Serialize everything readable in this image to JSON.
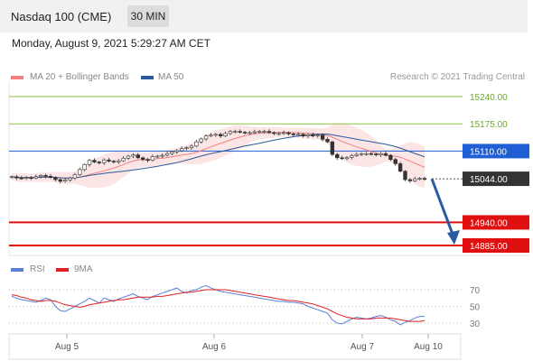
{
  "header": {
    "title": "Nasdaq 100 (CME)",
    "timeframe": "30 MIN",
    "timestamp": "Monday, August 9, 2021 5:29:27 AM CET"
  },
  "legend": {
    "items": [
      {
        "label": "MA 20 + Bollinger Bands",
        "color": "#f08080"
      },
      {
        "label": "MA 50",
        "color": "#2a5a9a"
      }
    ],
    "credit": "Research © 2021 Trading Central"
  },
  "rsi_legend": {
    "items": [
      {
        "label": "RSI",
        "color": "#5b7fd6"
      },
      {
        "label": "9MA",
        "color": "#e02020"
      }
    ]
  },
  "chart_data": [
    {
      "type": "candlestick",
      "title": "Nasdaq 100 (CME)",
      "price_levels": [
        {
          "value": 15240.0,
          "label": "15240.00",
          "kind": "target",
          "color": "#8cc63f"
        },
        {
          "value": 15175.0,
          "label": "15175.00",
          "kind": "target",
          "color": "#8cc63f"
        },
        {
          "value": 15110.0,
          "label": "15110.00",
          "kind": "pivot",
          "color": "#1e5fd6"
        },
        {
          "value": 15044.0,
          "label": "15044.00",
          "kind": "last",
          "color": "#333333"
        },
        {
          "value": 14940.0,
          "label": "14940.00",
          "kind": "support",
          "color": "#e01010"
        },
        {
          "value": 14885.0,
          "label": "14885.00",
          "kind": "support",
          "color": "#e01010"
        }
      ],
      "close_series": [
        15049,
        15046,
        15045,
        15047,
        15046,
        15049,
        15052,
        15050,
        15047,
        15042,
        15038,
        15041,
        15046,
        15054,
        15066,
        15078,
        15088,
        15084,
        15082,
        15089,
        15086,
        15084,
        15087,
        15093,
        15098,
        15101,
        15094,
        15090,
        15088,
        15097,
        15098,
        15100,
        15104,
        15108,
        15111,
        15116,
        15118,
        15122,
        15132,
        15139,
        15146,
        15148,
        15150,
        15146,
        15152,
        15157,
        15157,
        15155,
        15154,
        15154,
        15156,
        15157,
        15157,
        15154,
        15152,
        15152,
        15154,
        15151,
        15150,
        15150,
        15146,
        15149,
        15146,
        15148,
        15138,
        15132,
        15102,
        15094,
        15092,
        15095,
        15099,
        15102,
        15104,
        15104,
        15103,
        15101,
        15104,
        15100,
        15090,
        15080,
        15062,
        15042,
        15039,
        15044,
        15045,
        15044
      ],
      "x_ticks": [
        "Aug 5",
        "Aug 6",
        "Aug 7",
        "Aug 10"
      ],
      "projection": "down to 14885.00"
    },
    {
      "type": "line",
      "title": "RSI",
      "y_ticks": [
        70,
        50,
        30
      ],
      "series": [
        {
          "name": "RSI",
          "values": [
            62,
            60,
            58,
            57,
            56,
            55,
            57,
            60,
            58,
            50,
            45,
            44,
            47,
            50,
            53,
            56,
            60,
            57,
            54,
            60,
            58,
            56,
            59,
            61,
            63,
            65,
            62,
            60,
            58,
            62,
            64,
            66,
            68,
            70,
            72,
            68,
            66,
            69,
            70,
            73,
            75,
            72,
            70,
            68,
            67,
            66,
            65,
            64,
            63,
            62,
            61,
            60,
            59,
            58,
            57,
            56,
            56,
            55,
            55,
            54,
            53,
            50,
            48,
            46,
            44,
            42,
            34,
            30,
            29,
            32,
            35,
            37,
            36,
            35,
            36,
            38,
            39,
            37,
            34,
            32,
            28,
            31,
            33,
            36,
            38,
            38
          ]
        },
        {
          "name": "9MA",
          "values": [
            64,
            63,
            61,
            60,
            58,
            57,
            56,
            57,
            57,
            56,
            54,
            52,
            51,
            50,
            49,
            50,
            52,
            53,
            54,
            55,
            56,
            57,
            58,
            58,
            59,
            60,
            61,
            61,
            61,
            61,
            62,
            62,
            63,
            64,
            65,
            66,
            67,
            67,
            68,
            69,
            70,
            70,
            70,
            70,
            70,
            69,
            68,
            67,
            66,
            65,
            64,
            63,
            62,
            61,
            60,
            59,
            58,
            57,
            57,
            56,
            55,
            54,
            53,
            51,
            49,
            47,
            44,
            41,
            39,
            37,
            36,
            35,
            35,
            35,
            35,
            36,
            36,
            36,
            36,
            35,
            34,
            33,
            32,
            32,
            32,
            33
          ]
        }
      ]
    }
  ]
}
